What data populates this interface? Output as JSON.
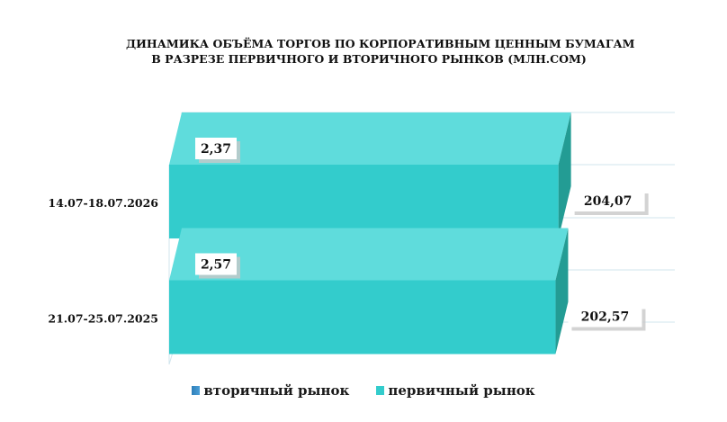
{
  "chart_data": {
    "type": "bar",
    "orientation": "horizontal",
    "stacked": false,
    "three_d": true,
    "title": "ДИНАМИКА ОБЪЁМА ТОРГОВ ПО КОРПОРАТИВНЫМ ЦЕННЫМ БУМАГАМ В РАЗРЕЗЕ ПЕРВИЧНОГО И ВТОРИЧНОГО РЫНКОВ  (МЛН.СОМ)",
    "title_lines": [
      "ДИНАМИКА ОБЪЁМА ТОРГОВ ПО КОРПОРАТИВНЫМ ЦЕННЫМ БУМАГАМ",
      "В РАЗРЕЗЕ ПЕРВИЧНОГО И ВТОРИЧНОГО РЫНКОВ  (МЛН.СОМ)"
    ],
    "categories": [
      "14.07-18.07.2026",
      "21.07-25.07.2025"
    ],
    "series": [
      {
        "name": "вторичный рынок",
        "values": [
          2.37,
          2.57
        ],
        "labels": [
          "2,37",
          "2,57"
        ],
        "color": "#4a9fd8"
      },
      {
        "name": "первичный рынок",
        "values": [
          204.07,
          202.57
        ],
        "labels": [
          "204,07",
          "202,57"
        ],
        "color": "#33cccc"
      }
    ],
    "xlim": [
      0,
      225
    ],
    "grid": true,
    "legend_position": "bottom"
  }
}
